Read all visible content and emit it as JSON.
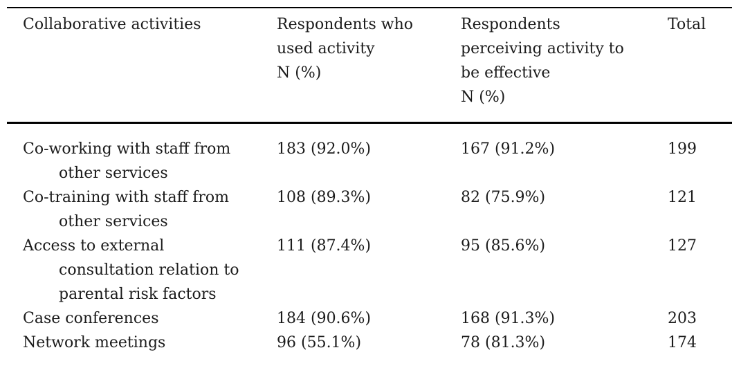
{
  "table": {
    "colors": {
      "text": "#1b1b1b",
      "rule": "#000000",
      "background": "#ffffff"
    },
    "columns": [
      {
        "label": "Collaborative activities",
        "lines": [
          "Collaborative activities"
        ]
      },
      {
        "label": "Respondents who used activity N (%)",
        "lines": [
          "Respondents who",
          "used activity",
          "N (%)"
        ]
      },
      {
        "label": "Respondents perceiving activity to be effective N (%)",
        "lines": [
          "Respondents",
          "perceiving activity to",
          "be effective",
          "N (%)"
        ]
      },
      {
        "label": "Total",
        "lines": [
          "Total"
        ]
      }
    ],
    "rows": [
      {
        "activity": "Co-working with staff from other services",
        "activity_lines": [
          "Co-working with staff from",
          "other services"
        ],
        "used": "183 (92.0%)",
        "effective": "167 (91.2%)",
        "total": "199"
      },
      {
        "activity": "Co-training with staff from other services",
        "activity_lines": [
          "Co-training with staff from",
          "other services"
        ],
        "used": "108 (89.3%)",
        "effective": "82 (75.9%)",
        "total": "121"
      },
      {
        "activity": "Access to external consultation relation to parental risk factors",
        "activity_lines": [
          "Access to external",
          "consultation relation to",
          "parental risk factors"
        ],
        "used": "111 (87.4%)",
        "effective": "95 (85.6%)",
        "total": "127"
      },
      {
        "activity": "Case conferences",
        "activity_lines": [
          "Case conferences"
        ],
        "used": "184 (90.6%)",
        "effective": "168 (91.3%)",
        "total": "203"
      },
      {
        "activity": "Network meetings",
        "activity_lines": [
          "Network meetings"
        ],
        "used": "96 (55.1%)",
        "effective": "78 (81.3%)",
        "total": "174"
      }
    ]
  }
}
